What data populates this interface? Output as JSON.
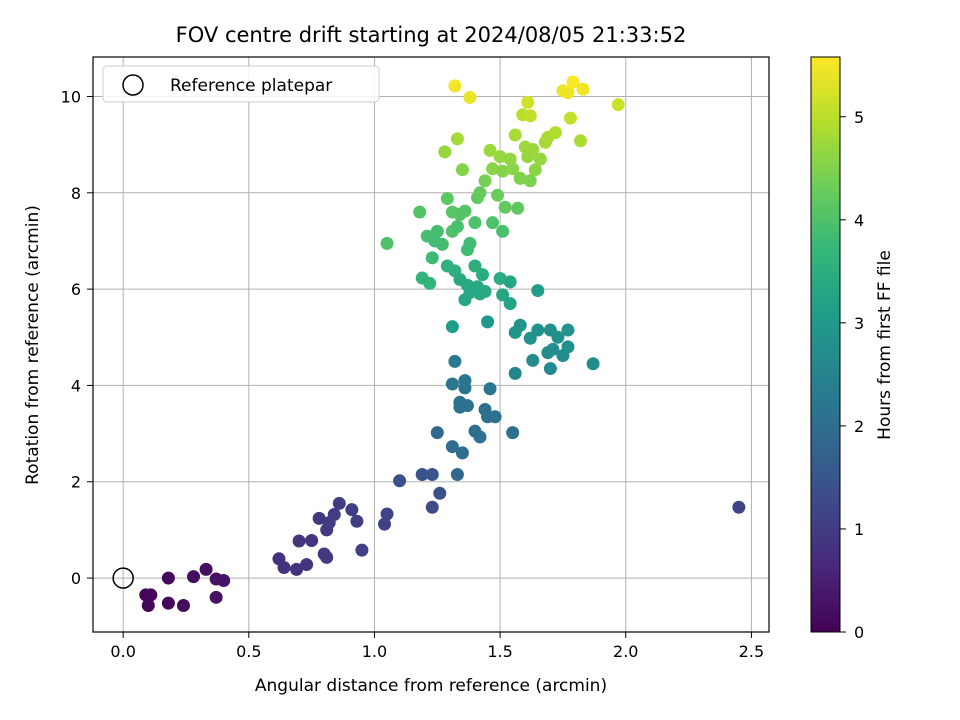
{
  "chart_data": {
    "type": "scatter",
    "title": "FOV centre drift starting at 2024/08/05 21:33:52",
    "xlabel": "Angular distance from reference (arcmin)",
    "ylabel": "Rotation from reference (arcmin)",
    "xlim": [
      -0.12,
      2.57
    ],
    "ylim": [
      -1.12,
      10.82
    ],
    "xticks": [
      0.0,
      0.5,
      1.0,
      1.5,
      2.0,
      2.5
    ],
    "xtick_labels": [
      "0.0",
      "0.5",
      "1.0",
      "1.5",
      "2.0",
      "2.5"
    ],
    "yticks": [
      0,
      2,
      4,
      6,
      8,
      10
    ],
    "ytick_labels": [
      "0",
      "2",
      "4",
      "6",
      "8",
      "10"
    ],
    "grid": true,
    "legend": {
      "position": "top-left",
      "entries": [
        "Reference platepar"
      ]
    },
    "reference_point": {
      "x": 0.0,
      "y": 0.0
    },
    "colorbar": {
      "label": "Hours from first FF file",
      "range": [
        0,
        5.58
      ],
      "ticks": [
        0,
        1,
        2,
        3,
        4,
        5
      ],
      "tick_labels": [
        "0",
        "1",
        "2",
        "3",
        "4",
        "5"
      ],
      "colormap": "viridis"
    },
    "colormap_stops": [
      "#440154",
      "#482878",
      "#3e4989",
      "#31688e",
      "#26828e",
      "#1f9e89",
      "#35b779",
      "#6ece58",
      "#b5de2b",
      "#fde725"
    ],
    "points": [
      {
        "x": 0.09,
        "y": -0.35,
        "c": 0.05
      },
      {
        "x": 0.11,
        "y": -0.35,
        "c": 0.08
      },
      {
        "x": 0.1,
        "y": -0.57,
        "c": 0.1
      },
      {
        "x": 0.18,
        "y": -0.52,
        "c": 0.12
      },
      {
        "x": 0.18,
        "y": 0.0,
        "c": 0.15
      },
      {
        "x": 0.24,
        "y": -0.57,
        "c": 0.18
      },
      {
        "x": 0.28,
        "y": 0.03,
        "c": 0.2
      },
      {
        "x": 0.33,
        "y": 0.18,
        "c": 0.22
      },
      {
        "x": 0.37,
        "y": -0.02,
        "c": 0.25
      },
      {
        "x": 0.37,
        "y": -0.4,
        "c": 0.28
      },
      {
        "x": 0.4,
        "y": -0.05,
        "c": 0.3
      },
      {
        "x": 0.62,
        "y": 0.4,
        "c": 0.75
      },
      {
        "x": 0.64,
        "y": 0.22,
        "c": 0.78
      },
      {
        "x": 0.69,
        "y": 0.18,
        "c": 0.8
      },
      {
        "x": 0.7,
        "y": 0.77,
        "c": 0.82
      },
      {
        "x": 0.73,
        "y": 0.28,
        "c": 0.85
      },
      {
        "x": 0.75,
        "y": 0.78,
        "c": 0.87
      },
      {
        "x": 0.78,
        "y": 1.24,
        "c": 0.9
      },
      {
        "x": 0.8,
        "y": 0.5,
        "c": 0.92
      },
      {
        "x": 0.81,
        "y": 0.43,
        "c": 0.94
      },
      {
        "x": 0.81,
        "y": 1.0,
        "c": 0.96
      },
      {
        "x": 0.82,
        "y": 1.15,
        "c": 0.98
      },
      {
        "x": 0.84,
        "y": 1.32,
        "c": 1.0
      },
      {
        "x": 0.86,
        "y": 1.55,
        "c": 1.02
      },
      {
        "x": 0.91,
        "y": 1.42,
        "c": 1.04
      },
      {
        "x": 0.93,
        "y": 1.18,
        "c": 1.06
      },
      {
        "x": 0.95,
        "y": 0.58,
        "c": 1.08
      },
      {
        "x": 1.04,
        "y": 1.12,
        "c": 1.1
      },
      {
        "x": 1.05,
        "y": 1.33,
        "c": 1.12
      },
      {
        "x": 1.1,
        "y": 2.02,
        "c": 1.35
      },
      {
        "x": 1.19,
        "y": 2.15,
        "c": 1.45
      },
      {
        "x": 1.23,
        "y": 2.15,
        "c": 1.48
      },
      {
        "x": 1.23,
        "y": 1.47,
        "c": 1.3
      },
      {
        "x": 1.26,
        "y": 1.76,
        "c": 1.4
      },
      {
        "x": 2.45,
        "y": 1.47,
        "c": 1.15
      },
      {
        "x": 1.25,
        "y": 3.02,
        "c": 1.9
      },
      {
        "x": 1.31,
        "y": 2.73,
        "c": 2.0
      },
      {
        "x": 1.31,
        "y": 4.03,
        "c": 2.2
      },
      {
        "x": 1.32,
        "y": 4.5,
        "c": 2.3
      },
      {
        "x": 1.33,
        "y": 2.15,
        "c": 1.85
      },
      {
        "x": 1.34,
        "y": 3.55,
        "c": 2.1
      },
      {
        "x": 1.34,
        "y": 3.65,
        "c": 2.12
      },
      {
        "x": 1.35,
        "y": 2.6,
        "c": 1.95
      },
      {
        "x": 1.36,
        "y": 3.95,
        "c": 2.15
      },
      {
        "x": 1.36,
        "y": 4.1,
        "c": 2.18
      },
      {
        "x": 1.37,
        "y": 3.58,
        "c": 2.08
      },
      {
        "x": 1.4,
        "y": 3.05,
        "c": 2.02
      },
      {
        "x": 1.42,
        "y": 2.93,
        "c": 2.04
      },
      {
        "x": 1.44,
        "y": 3.5,
        "c": 2.06
      },
      {
        "x": 1.45,
        "y": 3.35,
        "c": 2.05
      },
      {
        "x": 1.46,
        "y": 3.93,
        "c": 2.16
      },
      {
        "x": 1.48,
        "y": 3.35,
        "c": 2.07
      },
      {
        "x": 1.55,
        "y": 3.02,
        "c": 2.03
      },
      {
        "x": 1.31,
        "y": 5.22,
        "c": 3.1
      },
      {
        "x": 1.45,
        "y": 5.32,
        "c": 3.0
      },
      {
        "x": 1.56,
        "y": 4.25,
        "c": 2.55
      },
      {
        "x": 1.56,
        "y": 5.1,
        "c": 2.9
      },
      {
        "x": 1.58,
        "y": 5.25,
        "c": 2.85
      },
      {
        "x": 1.62,
        "y": 4.98,
        "c": 2.8
      },
      {
        "x": 1.63,
        "y": 4.52,
        "c": 2.7
      },
      {
        "x": 1.65,
        "y": 5.15,
        "c": 2.82
      },
      {
        "x": 1.69,
        "y": 4.68,
        "c": 2.72
      },
      {
        "x": 1.7,
        "y": 5.15,
        "c": 2.78
      },
      {
        "x": 1.7,
        "y": 4.35,
        "c": 2.65
      },
      {
        "x": 1.71,
        "y": 4.75,
        "c": 2.74
      },
      {
        "x": 1.73,
        "y": 5.0,
        "c": 2.8
      },
      {
        "x": 1.75,
        "y": 4.62,
        "c": 2.7
      },
      {
        "x": 1.77,
        "y": 5.15,
        "c": 2.84
      },
      {
        "x": 1.77,
        "y": 4.8,
        "c": 2.76
      },
      {
        "x": 1.87,
        "y": 4.45,
        "c": 2.68
      },
      {
        "x": 1.65,
        "y": 5.97,
        "c": 3.05
      },
      {
        "x": 1.19,
        "y": 6.23,
        "c": 3.7
      },
      {
        "x": 1.22,
        "y": 6.12,
        "c": 3.65
      },
      {
        "x": 1.29,
        "y": 6.48,
        "c": 3.6
      },
      {
        "x": 1.32,
        "y": 6.38,
        "c": 3.55
      },
      {
        "x": 1.34,
        "y": 6.2,
        "c": 3.4
      },
      {
        "x": 1.36,
        "y": 5.78,
        "c": 3.3
      },
      {
        "x": 1.37,
        "y": 6.08,
        "c": 3.35
      },
      {
        "x": 1.38,
        "y": 5.93,
        "c": 3.32
      },
      {
        "x": 1.4,
        "y": 6.48,
        "c": 3.5
      },
      {
        "x": 1.41,
        "y": 6.05,
        "c": 3.38
      },
      {
        "x": 1.42,
        "y": 5.9,
        "c": 3.36
      },
      {
        "x": 1.43,
        "y": 6.3,
        "c": 3.45
      },
      {
        "x": 1.44,
        "y": 5.95,
        "c": 3.34
      },
      {
        "x": 1.5,
        "y": 6.22,
        "c": 3.42
      },
      {
        "x": 1.51,
        "y": 5.88,
        "c": 3.28
      },
      {
        "x": 1.54,
        "y": 6.15,
        "c": 3.3
      },
      {
        "x": 1.54,
        "y": 5.7,
        "c": 3.25
      },
      {
        "x": 1.05,
        "y": 6.95,
        "c": 4.0
      },
      {
        "x": 1.18,
        "y": 7.6,
        "c": 4.05
      },
      {
        "x": 1.21,
        "y": 7.1,
        "c": 3.9
      },
      {
        "x": 1.23,
        "y": 6.65,
        "c": 3.8
      },
      {
        "x": 1.24,
        "y": 7.0,
        "c": 3.85
      },
      {
        "x": 1.25,
        "y": 7.2,
        "c": 3.92
      },
      {
        "x": 1.27,
        "y": 6.93,
        "c": 3.88
      },
      {
        "x": 1.29,
        "y": 7.88,
        "c": 4.15
      },
      {
        "x": 1.31,
        "y": 7.6,
        "c": 4.1
      },
      {
        "x": 1.31,
        "y": 7.2,
        "c": 4.0
      },
      {
        "x": 1.33,
        "y": 7.3,
        "c": 3.95
      },
      {
        "x": 1.34,
        "y": 7.55,
        "c": 4.05
      },
      {
        "x": 1.36,
        "y": 7.62,
        "c": 4.08
      },
      {
        "x": 1.37,
        "y": 6.82,
        "c": 3.85
      },
      {
        "x": 1.38,
        "y": 6.95,
        "c": 3.86
      },
      {
        "x": 1.4,
        "y": 7.38,
        "c": 4.0
      },
      {
        "x": 1.41,
        "y": 7.9,
        "c": 4.2
      },
      {
        "x": 1.42,
        "y": 8.0,
        "c": 4.25
      },
      {
        "x": 1.44,
        "y": 8.25,
        "c": 4.4
      },
      {
        "x": 1.47,
        "y": 7.38,
        "c": 3.98
      },
      {
        "x": 1.49,
        "y": 7.95,
        "c": 4.3
      },
      {
        "x": 1.51,
        "y": 7.2,
        "c": 3.95
      },
      {
        "x": 1.52,
        "y": 7.7,
        "c": 4.2
      },
      {
        "x": 1.57,
        "y": 7.68,
        "c": 4.18
      },
      {
        "x": 1.28,
        "y": 8.85,
        "c": 4.7
      },
      {
        "x": 1.33,
        "y": 9.12,
        "c": 4.8
      },
      {
        "x": 1.35,
        "y": 8.48,
        "c": 4.55
      },
      {
        "x": 1.46,
        "y": 8.88,
        "c": 4.72
      },
      {
        "x": 1.47,
        "y": 8.5,
        "c": 4.58
      },
      {
        "x": 1.5,
        "y": 8.75,
        "c": 4.68
      },
      {
        "x": 1.51,
        "y": 8.45,
        "c": 4.55
      },
      {
        "x": 1.54,
        "y": 8.7,
        "c": 4.66
      },
      {
        "x": 1.55,
        "y": 8.5,
        "c": 4.58
      },
      {
        "x": 1.56,
        "y": 9.2,
        "c": 4.85
      },
      {
        "x": 1.58,
        "y": 8.3,
        "c": 4.5
      },
      {
        "x": 1.59,
        "y": 9.62,
        "c": 5.0
      },
      {
        "x": 1.6,
        "y": 8.95,
        "c": 4.75
      },
      {
        "x": 1.61,
        "y": 8.75,
        "c": 4.7
      },
      {
        "x": 1.62,
        "y": 8.25,
        "c": 4.48
      },
      {
        "x": 1.63,
        "y": 8.9,
        "c": 4.74
      },
      {
        "x": 1.64,
        "y": 8.48,
        "c": 4.6
      },
      {
        "x": 1.66,
        "y": 8.7,
        "c": 4.68
      },
      {
        "x": 1.68,
        "y": 9.05,
        "c": 4.82
      },
      {
        "x": 1.69,
        "y": 9.15,
        "c": 4.86
      },
      {
        "x": 1.72,
        "y": 9.25,
        "c": 4.9
      },
      {
        "x": 1.61,
        "y": 9.88,
        "c": 5.2
      },
      {
        "x": 1.62,
        "y": 9.6,
        "c": 5.05
      },
      {
        "x": 1.78,
        "y": 9.55,
        "c": 5.08
      },
      {
        "x": 1.82,
        "y": 9.08,
        "c": 4.88
      },
      {
        "x": 1.97,
        "y": 9.83,
        "c": 5.15
      },
      {
        "x": 1.32,
        "y": 10.22,
        "c": 5.5
      },
      {
        "x": 1.38,
        "y": 9.98,
        "c": 5.4
      },
      {
        "x": 1.75,
        "y": 10.12,
        "c": 5.42
      },
      {
        "x": 1.77,
        "y": 10.08,
        "c": 5.45
      },
      {
        "x": 1.79,
        "y": 10.3,
        "c": 5.55
      },
      {
        "x": 1.83,
        "y": 10.15,
        "c": 5.48
      }
    ]
  }
}
